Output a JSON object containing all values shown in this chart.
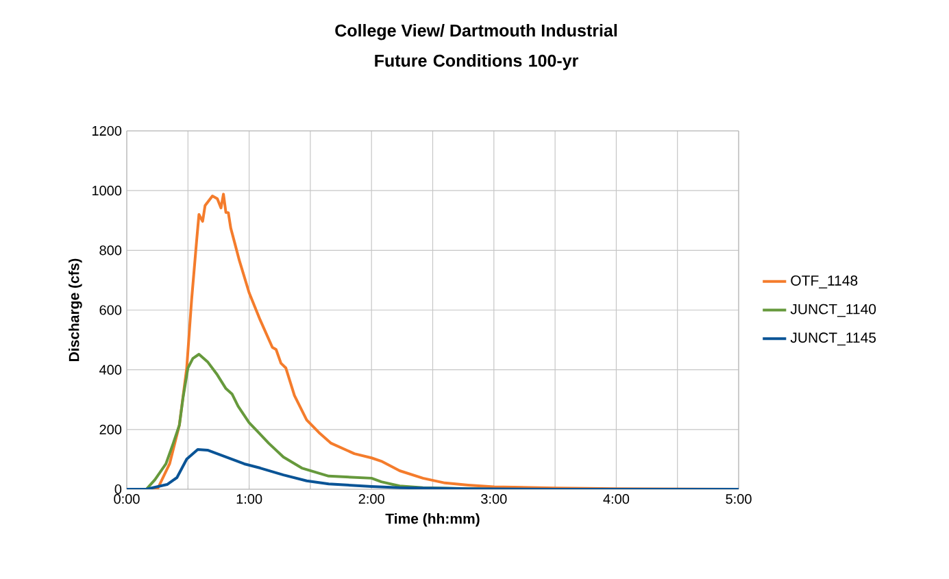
{
  "chart_data": {
    "type": "line",
    "title": "College View/ Dartmouth Industrial",
    "subtitle": "Future Conditions 100-yr",
    "xlabel": "Time (hh:mm)",
    "ylabel": "Discharge (cfs)",
    "xlim": [
      0,
      5
    ],
    "ylim": [
      0,
      1200
    ],
    "xticks": [
      {
        "value": 0,
        "label": "0:00"
      },
      {
        "value": 0.5,
        "label": null
      },
      {
        "value": 1,
        "label": "1:00"
      },
      {
        "value": 1.5,
        "label": null
      },
      {
        "value": 2,
        "label": "2:00"
      },
      {
        "value": 2.5,
        "label": null
      },
      {
        "value": 3,
        "label": "3:00"
      },
      {
        "value": 3.5,
        "label": null
      },
      {
        "value": 4,
        "label": "4:00"
      },
      {
        "value": 4.5,
        "label": null
      },
      {
        "value": 5,
        "label": "5:00"
      }
    ],
    "yticks": [
      0,
      200,
      400,
      600,
      800,
      1000,
      1200
    ],
    "grid": true,
    "legend": "right",
    "marker": "none",
    "line_style": "solid",
    "series": [
      {
        "name": "OTF_1148",
        "color": "#f47c2c",
        "x": [
          0,
          0.25,
          0.35,
          0.43,
          0.49,
          0.53,
          0.57,
          0.59,
          0.62,
          0.64,
          0.7,
          0.74,
          0.77,
          0.79,
          0.81,
          0.83,
          0.85,
          0.88,
          0.92,
          1.0,
          1.09,
          1.19,
          1.22,
          1.26,
          1.3,
          1.37,
          1.47,
          1.57,
          1.67,
          1.86,
          2.0,
          2.08,
          2.23,
          2.42,
          2.6,
          2.79,
          3.0,
          3.5,
          4.0,
          5.0
        ],
        "values": [
          0,
          0,
          85,
          215,
          406,
          635,
          828,
          920,
          897,
          950,
          982,
          973,
          942,
          988,
          927,
          926,
          874,
          828,
          766,
          658,
          567,
          475,
          468,
          422,
          406,
          314,
          232,
          190,
          154,
          119,
          105,
          94,
          62,
          37,
          21,
          14,
          8,
          4,
          2,
          0
        ]
      },
      {
        "name": "JUNCT_1140",
        "color": "#66993c",
        "x": [
          0,
          0.16,
          0.23,
          0.32,
          0.38,
          0.43,
          0.46,
          0.5,
          0.54,
          0.59,
          0.66,
          0.74,
          0.81,
          0.86,
          0.91,
          1.0,
          1.07,
          1.16,
          1.28,
          1.43,
          1.65,
          2.0,
          2.08,
          2.23,
          2.42,
          3.0,
          5.0
        ],
        "values": [
          0,
          0,
          32,
          85,
          154,
          215,
          307,
          406,
          438,
          452,
          427,
          383,
          337,
          319,
          278,
          223,
          193,
          154,
          108,
          71,
          44,
          37,
          25,
          11,
          5,
          0,
          0
        ]
      },
      {
        "name": "JUNCT_1145",
        "color": "#0a5496",
        "x": [
          0,
          0.16,
          0.33,
          0.41,
          0.49,
          0.58,
          0.66,
          0.81,
          0.96,
          1.09,
          1.28,
          1.47,
          1.65,
          2.0,
          2.23,
          2.79,
          3.5,
          5.0
        ],
        "values": [
          0,
          0,
          16,
          39,
          101,
          133,
          131,
          108,
          85,
          71,
          48,
          28,
          18,
          9,
          5,
          2,
          0,
          0
        ]
      }
    ]
  }
}
